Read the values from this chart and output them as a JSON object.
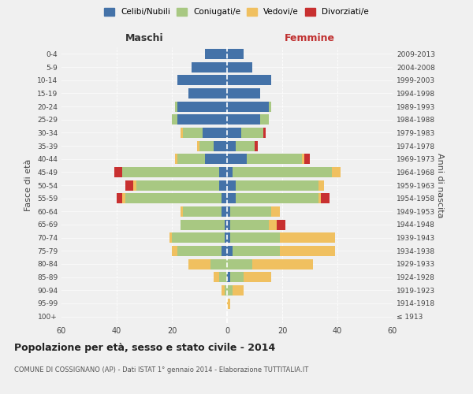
{
  "age_groups": [
    "100+",
    "95-99",
    "90-94",
    "85-89",
    "80-84",
    "75-79",
    "70-74",
    "65-69",
    "60-64",
    "55-59",
    "50-54",
    "45-49",
    "40-44",
    "35-39",
    "30-34",
    "25-29",
    "20-24",
    "15-19",
    "10-14",
    "5-9",
    "0-4"
  ],
  "birth_years": [
    "≤ 1913",
    "1914-1918",
    "1919-1923",
    "1924-1928",
    "1929-1933",
    "1934-1938",
    "1939-1943",
    "1944-1948",
    "1949-1953",
    "1954-1958",
    "1959-1963",
    "1964-1968",
    "1969-1973",
    "1974-1978",
    "1979-1983",
    "1984-1988",
    "1989-1993",
    "1994-1998",
    "1999-2003",
    "2004-2008",
    "2009-2013"
  ],
  "maschi": {
    "celibi": [
      0,
      0,
      0,
      0,
      0,
      2,
      1,
      1,
      2,
      2,
      3,
      3,
      8,
      5,
      9,
      18,
      18,
      14,
      18,
      13,
      8
    ],
    "coniugati": [
      0,
      0,
      1,
      3,
      6,
      16,
      19,
      16,
      14,
      35,
      30,
      35,
      10,
      5,
      7,
      2,
      1,
      0,
      0,
      0,
      0
    ],
    "vedovi": [
      0,
      0,
      1,
      2,
      8,
      2,
      1,
      0,
      1,
      1,
      1,
      0,
      1,
      1,
      1,
      0,
      0,
      0,
      0,
      0,
      0
    ],
    "divorziati": [
      0,
      0,
      0,
      0,
      0,
      0,
      0,
      0,
      0,
      2,
      3,
      3,
      0,
      0,
      0,
      0,
      0,
      0,
      0,
      0,
      0
    ]
  },
  "femmine": {
    "nubili": [
      0,
      0,
      0,
      1,
      0,
      2,
      1,
      1,
      1,
      3,
      3,
      2,
      7,
      3,
      5,
      12,
      15,
      12,
      16,
      9,
      6
    ],
    "coniugate": [
      0,
      0,
      2,
      5,
      9,
      17,
      18,
      14,
      15,
      30,
      30,
      36,
      20,
      7,
      8,
      3,
      1,
      0,
      0,
      0,
      0
    ],
    "vedove": [
      0,
      1,
      4,
      10,
      22,
      20,
      20,
      3,
      3,
      1,
      2,
      3,
      1,
      0,
      0,
      0,
      0,
      0,
      0,
      0,
      0
    ],
    "divorziate": [
      0,
      0,
      0,
      0,
      0,
      0,
      0,
      3,
      0,
      3,
      0,
      0,
      2,
      1,
      1,
      0,
      0,
      0,
      0,
      0,
      0
    ]
  },
  "colors": {
    "celibi_nubili": "#4472A8",
    "coniugati": "#A8C882",
    "vedovi": "#F0C060",
    "divorziati": "#C83030"
  },
  "title": "Popolazione per età, sesso e stato civile - 2014",
  "subtitle": "COMUNE DI COSSIGNANO (AP) - Dati ISTAT 1° gennaio 2014 - Elaborazione TUTTITALIA.IT",
  "xlabel_maschi": "Maschi",
  "xlabel_femmine": "Femmine",
  "ylabel": "Fasce di età",
  "ylabel_right": "Anni di nascita",
  "xlim": 60,
  "background_color": "#f0f0f0",
  "legend_labels": [
    "Celibi/Nubili",
    "Coniugati/e",
    "Vedovi/e",
    "Divorziati/e"
  ]
}
